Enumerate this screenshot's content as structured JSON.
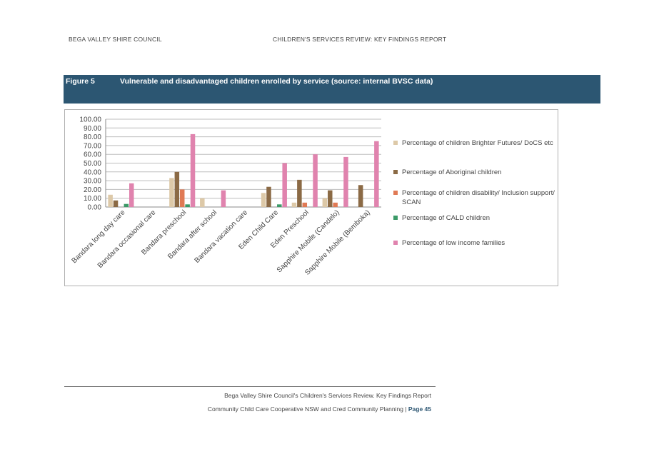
{
  "header": {
    "left": "BEGA VALLEY SHIRE COUNCIL",
    "right": "CHILDREN'S SERVICES REVIEW: KEY FINDINGS REPORT"
  },
  "figure": {
    "number": "Figure 5",
    "title": "Vulnerable and disadvantaged children enrolled by service (source: internal BVSC data)"
  },
  "chart_data": {
    "type": "bar",
    "categories": [
      "Bandara long day care",
      "Bandara occasional care",
      "Bandara preschool",
      "Bandara after school",
      "Bandara vacation care",
      "Eden Child Care",
      "Eden Preschool",
      "Sapphire Mobile (Candelo)",
      "Sapphire Mobile (Bemboka)"
    ],
    "series": [
      {
        "name": "Percentage of children Brighter Futures/ DoCS etc",
        "color": "#ddc9a8",
        "values": [
          14,
          0,
          33,
          10,
          0,
          16,
          5,
          10,
          0
        ]
      },
      {
        "name": "Percentage of Aboriginal children",
        "color": "#8b6a45",
        "values": [
          7.5,
          0,
          40,
          0,
          0,
          23,
          31,
          19,
          25
        ]
      },
      {
        "name": "Percentage of children disability/ Inclusion support/ SCAN",
        "color": "#e07a55",
        "values": [
          0,
          0,
          20,
          0,
          0,
          0,
          5,
          5,
          0
        ]
      },
      {
        "name": "Percentage of CALD children",
        "color": "#3c9a68",
        "values": [
          3.5,
          0,
          3,
          0,
          0,
          3,
          0,
          0,
          0
        ]
      },
      {
        "name": "Percentage of low income families",
        "color": "#e083ae",
        "values": [
          27,
          0,
          83,
          19,
          0,
          50,
          60,
          57,
          75
        ]
      }
    ],
    "yticks": [
      "100.00",
      "90.00",
      "80.00",
      "70.00",
      "60.00",
      "50.00",
      "40.00",
      "30.00",
      "20.00",
      "10.00",
      "0.00"
    ],
    "ylim": [
      0,
      100
    ],
    "legend_position": "right"
  },
  "footer": {
    "line1": "Bega Valley Shire Council's Children's Services Review. Key Findings Report",
    "line2": "Community Child Care Cooperative NSW and Cred Community Planning | ",
    "page": "Page 45"
  }
}
